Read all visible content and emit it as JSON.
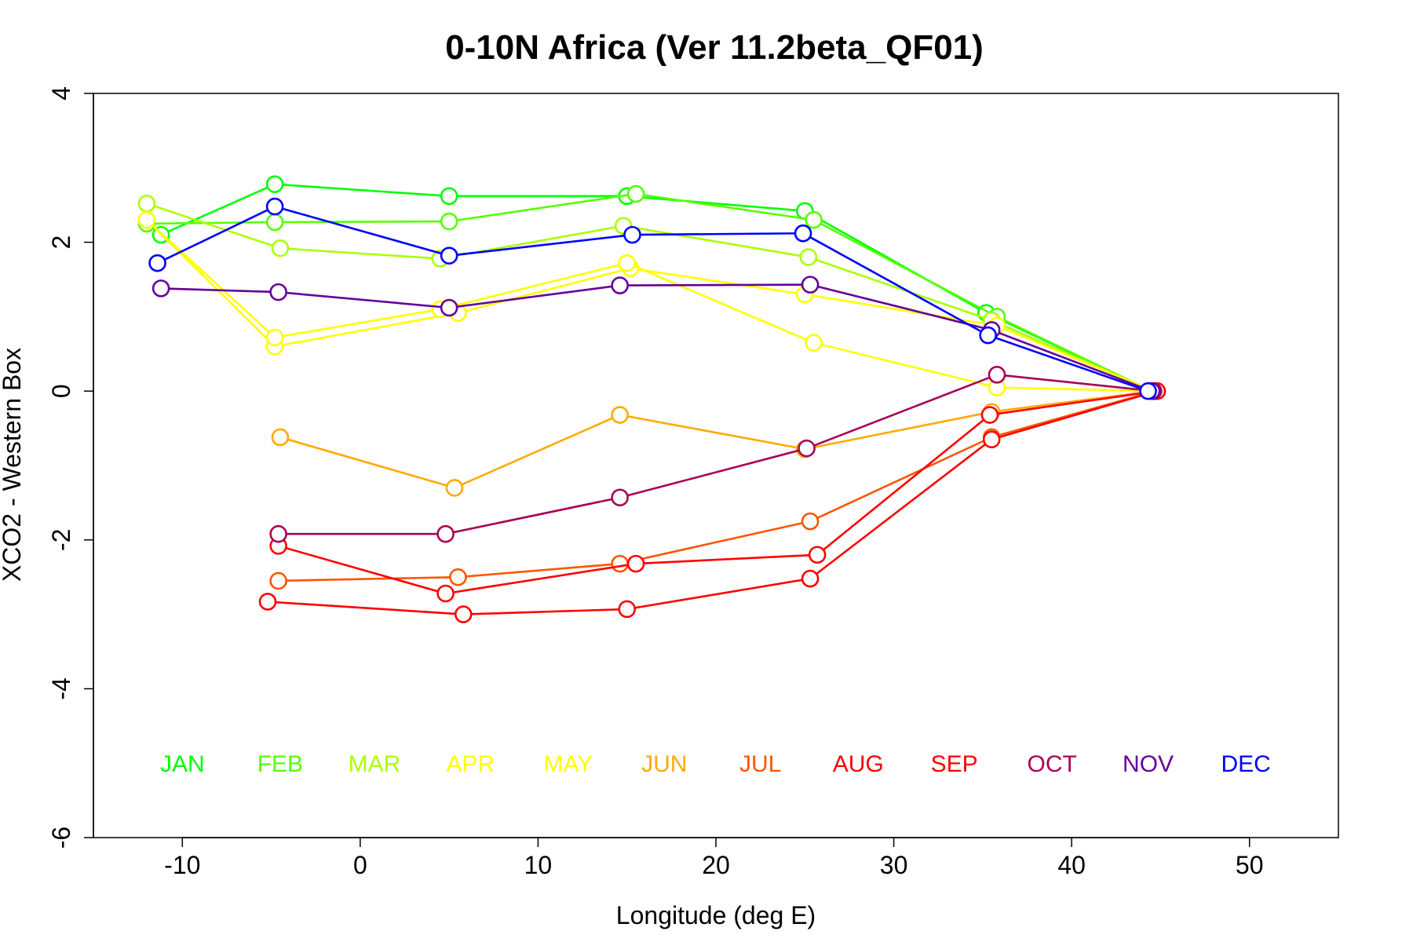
{
  "chart_data": {
    "type": "line",
    "title": "0-10N Africa (Ver 11.2beta_QF01)",
    "xlabel": "Longitude (deg E)",
    "ylabel": "XCO2 - Western Box",
    "xlim": [
      -15,
      55
    ],
    "ylim": [
      -6,
      4
    ],
    "x_ticks": [
      -10,
      0,
      10,
      20,
      30,
      40,
      50
    ],
    "y_ticks": [
      -6,
      -4,
      -2,
      0,
      2,
      4
    ],
    "legend_row_y": -5,
    "series": [
      {
        "name": "JAN",
        "color": "#00ff00",
        "x": [
          -11.2,
          -4.8,
          5.0,
          15.0,
          25.0,
          35.2,
          44.5
        ],
        "values": [
          2.1,
          2.78,
          2.62,
          2.62,
          2.42,
          1.05,
          0.0
        ]
      },
      {
        "name": "FEB",
        "color": "#55ff00",
        "x": [
          -12.0,
          -4.8,
          5.0,
          15.5,
          25.5,
          35.8,
          44.5
        ],
        "values": [
          2.25,
          2.27,
          2.28,
          2.65,
          2.3,
          1.0,
          0.0
        ]
      },
      {
        "name": "MAR",
        "color": "#aaff00",
        "x": [
          -12.0,
          -4.5,
          4.5,
          14.8,
          25.2,
          35.5,
          44.6
        ],
        "values": [
          2.52,
          1.92,
          1.78,
          2.22,
          1.8,
          0.95,
          0.0
        ]
      },
      {
        "name": "APR",
        "color": "#ffff00",
        "x": [
          -12.0,
          -4.8,
          5.5,
          15.2,
          25.0,
          35.8,
          44.6
        ],
        "values": [
          2.3,
          0.6,
          1.05,
          1.65,
          1.3,
          0.88,
          0.0
        ]
      },
      {
        "name": "MAY",
        "color": "#ffff00",
        "x": [
          -12.0,
          -4.8,
          4.5,
          15.0,
          25.5,
          35.8,
          44.6
        ],
        "values": [
          2.3,
          0.72,
          1.1,
          1.72,
          0.65,
          0.05,
          0.0
        ]
      },
      {
        "name": "JUN",
        "color": "#ffaa00",
        "x": [
          -4.5,
          5.3,
          14.6,
          25.0,
          35.5,
          44.6
        ],
        "values": [
          -0.62,
          -1.3,
          -0.32,
          -0.78,
          -0.28,
          0.0
        ]
      },
      {
        "name": "JUL",
        "color": "#ff5500",
        "x": [
          -4.6,
          5.5,
          14.6,
          25.3,
          35.5,
          44.7
        ],
        "values": [
          -2.55,
          -2.5,
          -2.32,
          -1.75,
          -0.62,
          0.0
        ]
      },
      {
        "name": "AUG",
        "color": "#ff0000",
        "x": [
          -4.6,
          4.8,
          15.5,
          25.7,
          35.4,
          44.8
        ],
        "values": [
          -2.08,
          -2.72,
          -2.32,
          -2.2,
          -0.32,
          0.0
        ]
      },
      {
        "name": "SEP",
        "color": "#ff0000",
        "x": [
          -5.2,
          5.8,
          15.0,
          25.3,
          35.5,
          44.8
        ],
        "values": [
          -2.83,
          -3.0,
          -2.93,
          -2.52,
          -0.65,
          0.0
        ]
      },
      {
        "name": "OCT",
        "color": "#aa0055",
        "x": [
          -4.6,
          4.8,
          14.6,
          25.1,
          35.8,
          44.6
        ],
        "values": [
          -1.92,
          -1.92,
          -1.43,
          -0.77,
          0.22,
          0.0
        ]
      },
      {
        "name": "NOV",
        "color": "#660099",
        "x": [
          -11.2,
          -4.6,
          5.0,
          14.6,
          25.3,
          35.5,
          44.5
        ],
        "values": [
          1.38,
          1.33,
          1.12,
          1.42,
          1.43,
          0.82,
          0.0
        ]
      },
      {
        "name": "DEC",
        "color": "#0000ff",
        "x": [
          -11.4,
          -4.8,
          5.0,
          15.3,
          24.9,
          35.3,
          44.3
        ],
        "values": [
          1.72,
          2.48,
          1.82,
          2.1,
          2.12,
          0.75,
          0.0
        ]
      }
    ],
    "legend": [
      {
        "label": "JAN",
        "color": "#00ff00",
        "x": -10
      },
      {
        "label": "FEB",
        "color": "#55ff00",
        "x": -4.5
      },
      {
        "label": "MAR",
        "color": "#aaff00",
        "x": 0.8
      },
      {
        "label": "APR",
        "color": "#ffff00",
        "x": 6.2
      },
      {
        "label": "MAY",
        "color": "#ffff00",
        "x": 11.7
      },
      {
        "label": "JUN",
        "color": "#ffaa00",
        "x": 17.1
      },
      {
        "label": "JUL",
        "color": "#ff5500",
        "x": 22.5
      },
      {
        "label": "AUG",
        "color": "#ff0000",
        "x": 28.0
      },
      {
        "label": "SEP",
        "color": "#ff0000",
        "x": 33.4
      },
      {
        "label": "OCT",
        "color": "#aa0055",
        "x": 38.9
      },
      {
        "label": "NOV",
        "color": "#660099",
        "x": 44.3
      },
      {
        "label": "DEC",
        "color": "#0000ff",
        "x": 49.8
      }
    ]
  }
}
